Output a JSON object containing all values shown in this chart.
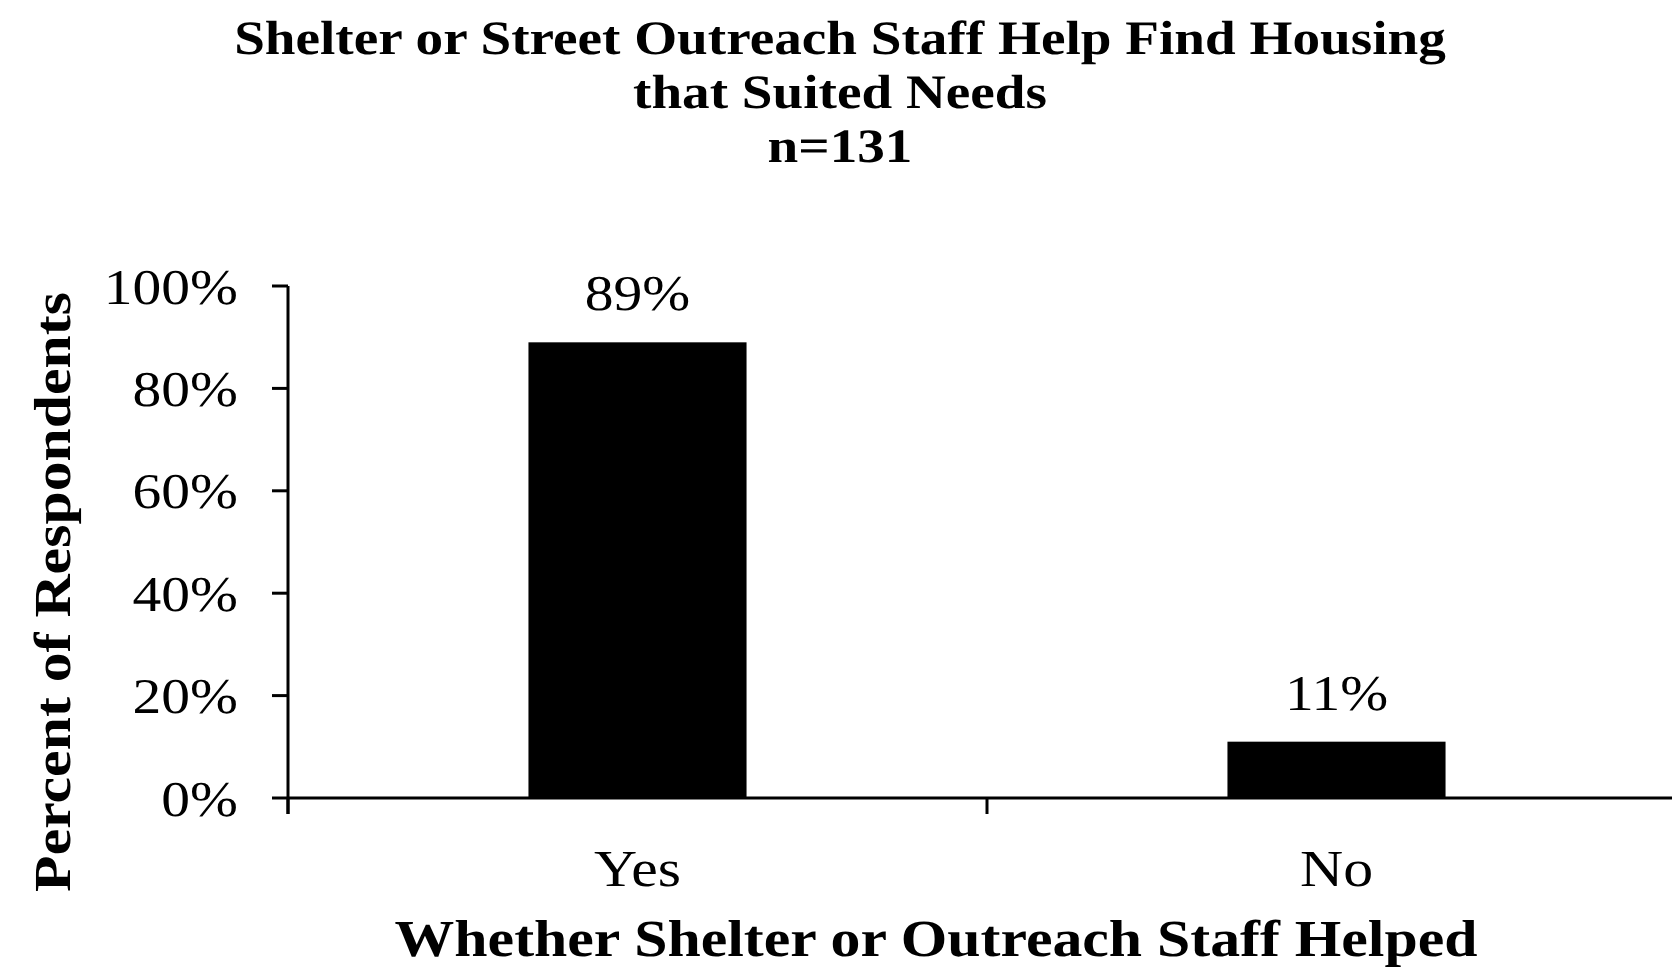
{
  "chart_data": {
    "type": "bar",
    "title": "Shelter or Street Outreach Staff Help Find Housing\nthat Suited Needs",
    "subtitle": "n=131",
    "xlabel": "Whether Shelter or Outreach Staff Helped",
    "ylabel": "Percent of Respondents",
    "categories": [
      "Yes",
      "No"
    ],
    "values": [
      89,
      11
    ],
    "color": "#000000",
    "value_labels": [
      "89%",
      "11%"
    ],
    "ylim": [
      0,
      100
    ],
    "yticks": [
      {
        "value": 0,
        "label": "0%"
      },
      {
        "value": 20,
        "label": "20%"
      },
      {
        "value": 40,
        "label": "40%"
      },
      {
        "value": 60,
        "label": "60%"
      },
      {
        "value": 80,
        "label": "80%"
      },
      {
        "value": 100,
        "label": "100%"
      }
    ]
  }
}
